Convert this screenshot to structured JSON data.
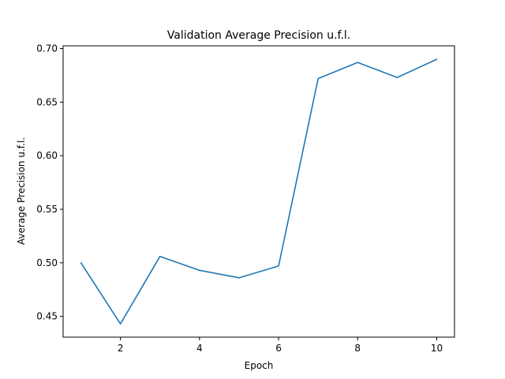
{
  "chart_data": {
    "type": "line",
    "title": "Validation Average Precision u.f.l.",
    "xlabel": "Epoch",
    "ylabel": "Average Precision u.f.l.",
    "x": [
      1,
      2,
      3,
      4,
      5,
      6,
      7,
      8,
      9,
      10
    ],
    "series": [
      {
        "values": [
          0.5,
          0.443,
          0.506,
          0.493,
          0.486,
          0.497,
          0.672,
          0.687,
          0.673,
          0.69
        ],
        "color": "#1f77b4"
      }
    ],
    "xlim": [
      0.55,
      10.45
    ],
    "ylim": [
      0.4306,
      0.7026
    ],
    "xticks": [
      2,
      4,
      6,
      8,
      10
    ],
    "yticks": [
      0.45,
      0.5,
      0.55,
      0.6,
      0.65,
      0.7
    ],
    "ytick_labels": [
      "0.45",
      "0.50",
      "0.55",
      "0.60",
      "0.65",
      "0.70"
    ],
    "grid": false,
    "legend": "none"
  }
}
